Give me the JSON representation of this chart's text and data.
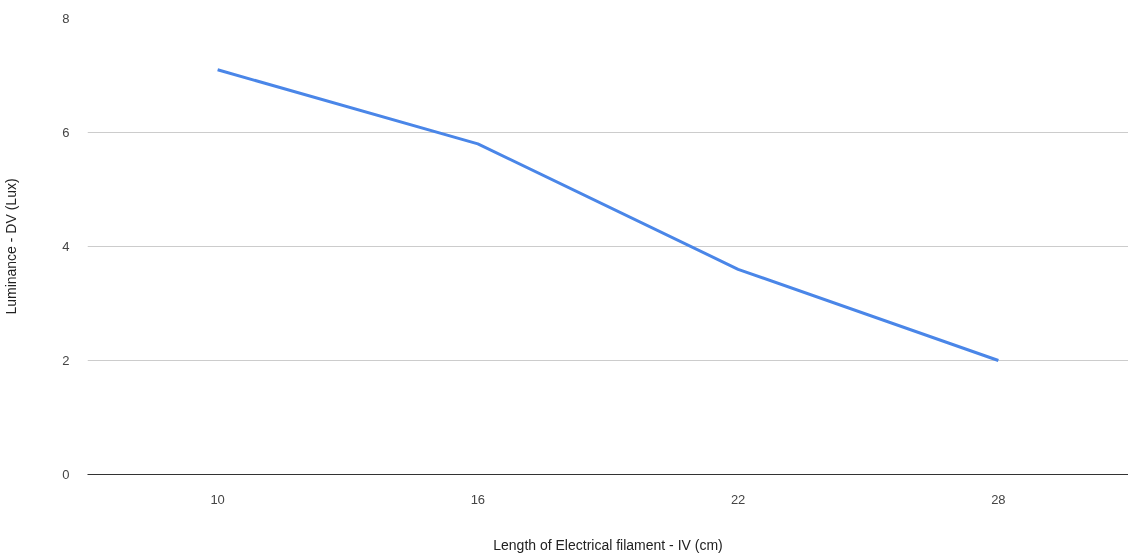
{
  "chart_data": {
    "type": "line",
    "xlabel": "Length of Electrical filament - IV (cm)",
    "ylabel": "Luminance - DV (Lux)",
    "categories": [
      "10",
      "16",
      "22",
      "28"
    ],
    "series": [
      {
        "color": "#4a86e8",
        "values": [
          7.1,
          5.8,
          3.6,
          2.0
        ]
      }
    ],
    "ylim": [
      0,
      8
    ],
    "yticks": [
      0,
      2,
      4,
      6,
      8
    ],
    "grid": "y"
  }
}
